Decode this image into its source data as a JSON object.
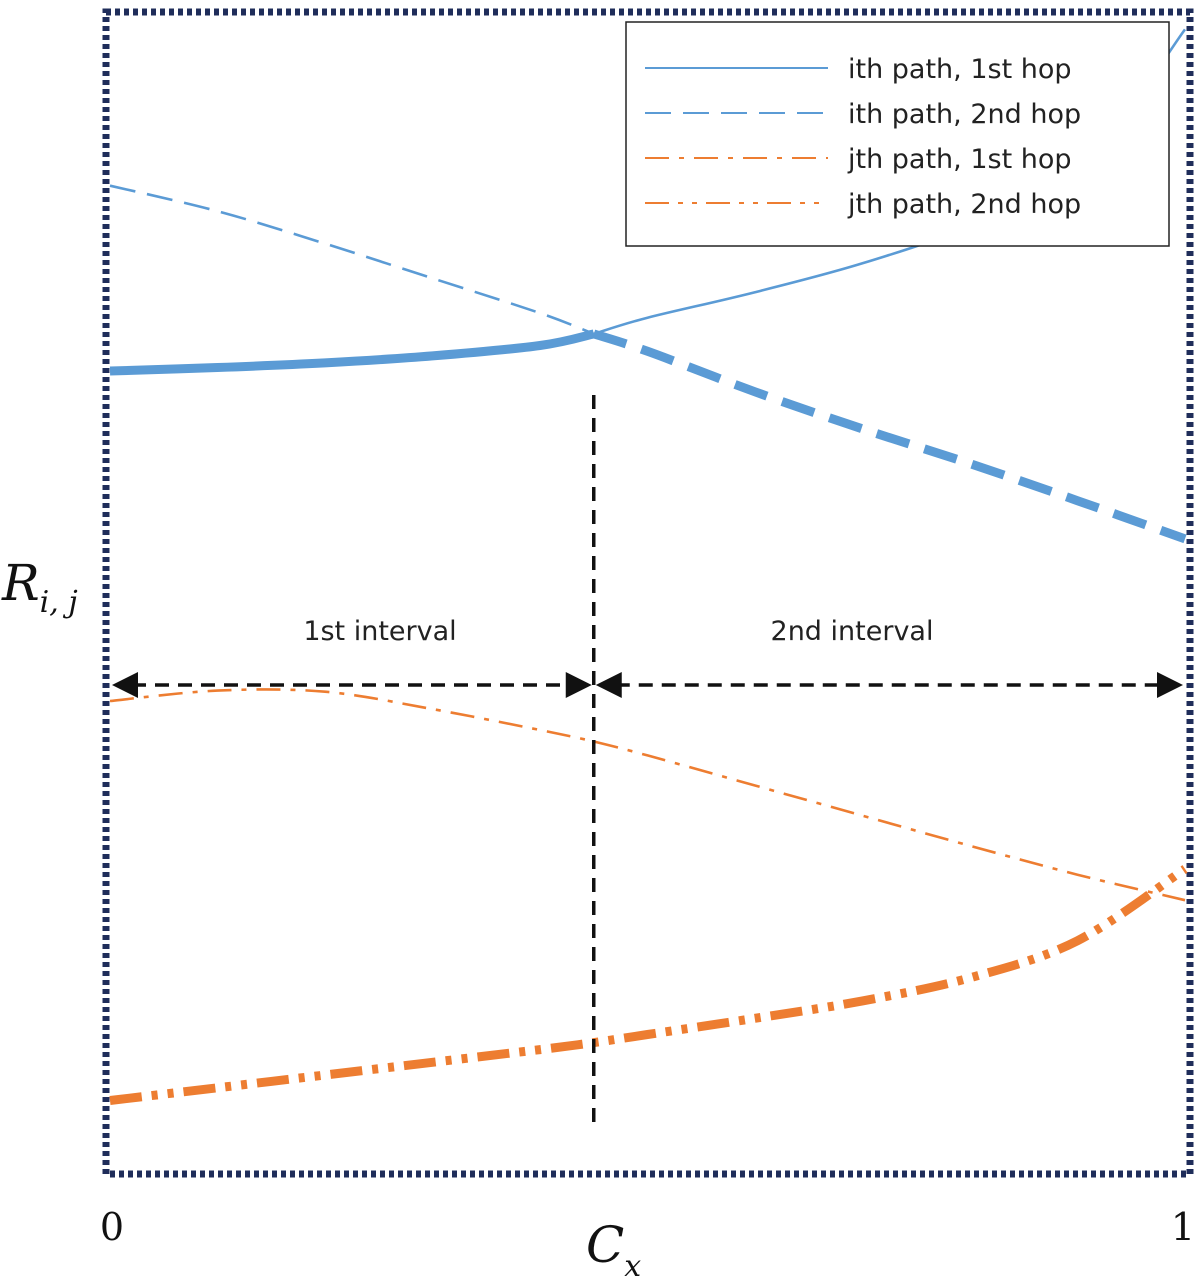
{
  "chart_data": {
    "type": "line",
    "x": [
      0,
      0.1,
      0.2,
      0.3,
      0.4,
      0.45,
      0.5,
      0.6,
      0.7,
      0.8,
      0.9,
      1.0
    ],
    "xlim": [
      0,
      1
    ],
    "x_ticks": [
      "0",
      "1"
    ],
    "xlabel": {
      "symbol": "C",
      "subscript": "x"
    },
    "ylabel": {
      "symbol": "R",
      "subscript": "i, j"
    },
    "divider_x": 0.45,
    "intervals": [
      {
        "label": "1st interval",
        "from": 0,
        "to": 0.45
      },
      {
        "label": "2nd interval",
        "from": 0.45,
        "to": 1.0
      }
    ],
    "series": [
      {
        "name": "ith path, 1st hop",
        "color": "#5b9bd5",
        "dash": "solid",
        "values": [
          0.69,
          0.693,
          0.697,
          0.703,
          0.712,
          0.722,
          0.736,
          0.758,
          0.783,
          0.815,
          0.86,
          0.985
        ]
      },
      {
        "name": "ith path, 2nd hop",
        "color": "#5b9bd5",
        "dash": "long-dash",
        "values": [
          0.85,
          0.828,
          0.8,
          0.77,
          0.74,
          0.722,
          0.707,
          0.672,
          0.64,
          0.61,
          0.578,
          0.545
        ]
      },
      {
        "name": "jth path, 1st hop",
        "color": "#ed7d31",
        "dash": "dash-dot",
        "values": [
          0.405,
          0.414,
          0.413,
          0.398,
          0.38,
          0.37,
          0.358,
          0.332,
          0.306,
          0.28,
          0.255,
          0.233
        ]
      },
      {
        "name": "jth path, 2nd hop",
        "color": "#ed7d31",
        "dash": "dash-dot-dot",
        "values": [
          0.06,
          0.071,
          0.082,
          0.093,
          0.104,
          0.11,
          0.117,
          0.131,
          0.146,
          0.166,
          0.198,
          0.26
        ]
      }
    ],
    "legend_position": "top-right",
    "grid": false
  }
}
